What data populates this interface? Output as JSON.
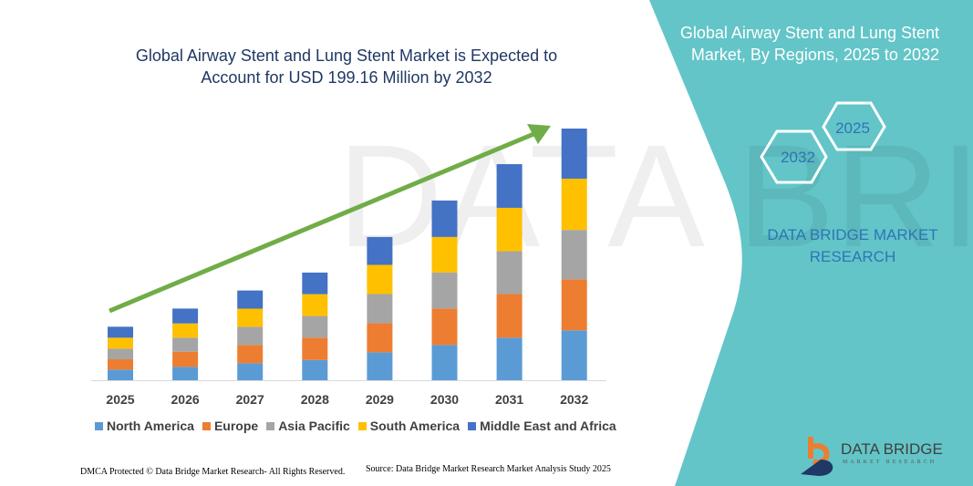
{
  "title": "Global Airway Stent and Lung Stent Market is Expected to Account for USD 199.16 Million by 2032",
  "side_panel": {
    "title": "Global Airway Stent and Lung Stent Market, By Regions, 2025 to 2032",
    "hex_labels": [
      "2025",
      "2032"
    ],
    "brand": "DATA BRIDGE MARKET RESEARCH",
    "background_color": "#63C5C8"
  },
  "logo": {
    "name": "DATA BRIDGE",
    "tagline": "MARKET RESEARCH"
  },
  "footer": {
    "copyright": "DMCA Protected © Data Bridge Market Research-  All Rights Reserved.",
    "source": "Source: Data Bridge Market Research  Market Analysis Study 2025"
  },
  "chart_data": {
    "type": "bar",
    "stacked": true,
    "title": "Global Airway Stent and Lung Stent Market is Expected to Account for USD 199.16 Million by 2032",
    "xlabel": "",
    "ylabel": "",
    "grid": false,
    "legend_position": "bottom",
    "trend_arrow": true,
    "categories": [
      "2025",
      "2026",
      "2027",
      "2028",
      "2029",
      "2030",
      "2031",
      "2032"
    ],
    "series": [
      {
        "name": "North America",
        "color": "#5B9BD5",
        "values": [
          8.4,
          10.6,
          13.5,
          16.0,
          22.1,
          27.9,
          33.7,
          39.5
        ]
      },
      {
        "name": "Europe",
        "color": "#ED7D31",
        "values": [
          8.2,
          12.0,
          14.4,
          17.8,
          23.1,
          28.9,
          34.6,
          40.4
        ]
      },
      {
        "name": "Asia Pacific",
        "color": "#A5A5A5",
        "values": [
          8.4,
          11.1,
          14.4,
          17.1,
          23.1,
          28.6,
          33.9,
          39.2
        ]
      },
      {
        "name": "South America",
        "color": "#FFC000",
        "values": [
          8.7,
          11.3,
          14.4,
          17.3,
          23.1,
          28.1,
          34.4,
          40.6
        ]
      },
      {
        "name": "Middle East and Africa",
        "color": "#4472C4",
        "values": [
          8.7,
          11.8,
          14.4,
          17.1,
          22.1,
          28.9,
          34.6,
          39.7
        ]
      }
    ]
  }
}
